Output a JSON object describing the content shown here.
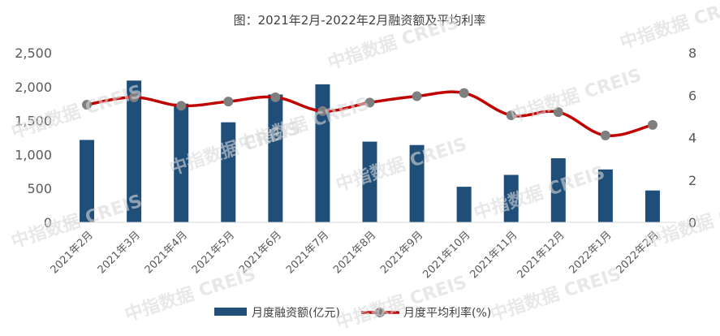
{
  "chart_data": {
    "type": "bar",
    "title": "图：2021年2月-2022年2月融资额及平均利率",
    "categories": [
      "2021年2月",
      "2021年3月",
      "2021年4月",
      "2021年5月",
      "2021年6月",
      "2021年7月",
      "2021年8月",
      "2021年9月",
      "2021年10月",
      "2021年11月",
      "2021年12月",
      "2022年1月",
      "2022年2月"
    ],
    "series": [
      {
        "name": "月度融资额(亿元)",
        "type": "bar",
        "axis": "left",
        "color": "#1f4e79",
        "values": [
          1215,
          2090,
          1750,
          1475,
          1885,
          2035,
          1190,
          1140,
          525,
          700,
          945,
          780,
          470
        ]
      },
      {
        "name": "月度平均利率(%)",
        "type": "line",
        "axis": "right",
        "color": "#c00000",
        "marker_color": "#7f7f7f",
        "values": [
          5.55,
          5.9,
          5.5,
          5.7,
          5.9,
          5.25,
          5.65,
          5.95,
          6.1,
          5.05,
          5.2,
          4.1,
          4.6
        ]
      }
    ],
    "y_left": {
      "min": 0,
      "max": 2500,
      "ticks": [
        "0",
        "500",
        "1,000",
        "1,500",
        "2,000",
        "2,500"
      ]
    },
    "y_right": {
      "min": 0,
      "max": 8,
      "ticks": [
        "0",
        "2",
        "4",
        "6",
        "8"
      ]
    },
    "grid": false,
    "legend_position": "bottom"
  },
  "watermark": "中指数据 CREIS"
}
